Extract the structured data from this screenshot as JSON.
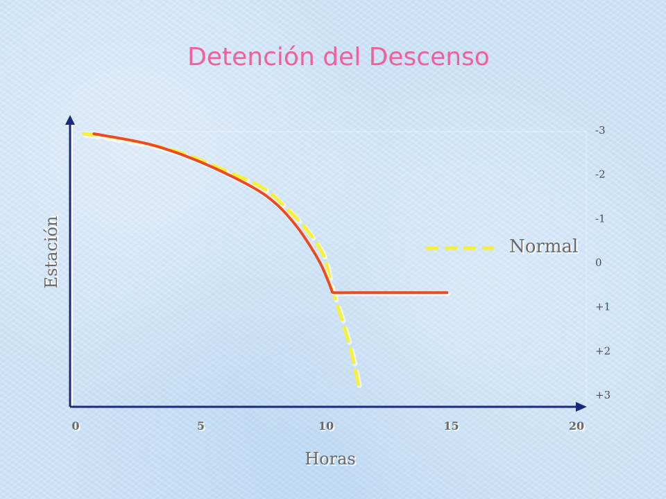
{
  "title": "Detención del Descenso",
  "chart_data": {
    "type": "line",
    "title": "Detención del Descenso",
    "xlabel": "Horas",
    "ylabel": "Estación",
    "x_ticks": [
      0,
      5,
      10,
      15,
      20
    ],
    "x_tick_labels": [
      "0",
      "5",
      "10",
      "15",
      "20"
    ],
    "xlim": [
      0,
      20
    ],
    "y_ticks": [
      -3,
      -2,
      -1,
      0,
      1,
      2,
      3
    ],
    "y_tick_labels": [
      "-3",
      "-2",
      "-1",
      "0",
      "+1",
      "+2",
      "+3"
    ],
    "ylim": [
      -3,
      3
    ],
    "y_axis_side": "right",
    "y_inverted": true,
    "legend": {
      "label": "Normal",
      "placement": "right-middle"
    },
    "series": [
      {
        "style": "dashed",
        "color": "#f5f038",
        "x": [
          0.3,
          2,
          4,
          6,
          7.5,
          8.5,
          9.3,
          9.9,
          10.2,
          10.6,
          11.0,
          11.3
        ],
        "y": [
          -3.0,
          -2.85,
          -2.6,
          -2.15,
          -1.75,
          -1.25,
          -0.75,
          -0.2,
          0.5,
          1.2,
          2.0,
          2.8
        ]
      },
      {
        "style": "solid",
        "color": "#ee4a1f",
        "x": [
          0.7,
          3,
          5,
          7,
          8,
          8.8,
          9.4,
          9.8,
          10.1,
          10.2,
          10.3,
          11,
          13,
          14.8
        ],
        "y": [
          -3.0,
          -2.75,
          -2.35,
          -1.8,
          -1.4,
          -0.9,
          -0.4,
          0.0,
          0.4,
          0.55,
          0.6,
          0.6,
          0.6,
          0.6
        ]
      }
    ]
  }
}
